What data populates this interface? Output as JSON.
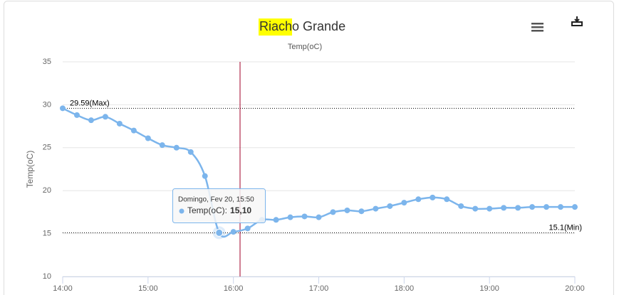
{
  "chart_data": {
    "type": "line",
    "title_highlight": "Riach",
    "title_rest": "o Grande",
    "subtitle": "Temp(oC)",
    "y_label": "Temp(oC)",
    "categories": [
      "14:00",
      null,
      null,
      null,
      null,
      null,
      "15:00",
      null,
      null,
      null,
      null,
      null,
      "16:00",
      null,
      null,
      null,
      null,
      null,
      "17:00",
      null,
      null,
      null,
      null,
      null,
      "18:00",
      null,
      null,
      null,
      null,
      null,
      "19:00",
      null,
      null,
      null,
      null,
      null,
      "20:00"
    ],
    "series": [
      {
        "name": "Temp(oC)",
        "color": "#7cb5ec",
        "values": [
          29.59,
          28.8,
          28.2,
          28.6,
          27.8,
          27.0,
          26.1,
          25.3,
          25.0,
          24.5,
          21.7,
          15.1,
          15.2,
          15.6,
          16.6,
          16.6,
          16.9,
          17.0,
          16.9,
          17.5,
          17.7,
          17.6,
          17.9,
          18.2,
          18.6,
          19.0,
          19.2,
          19.0,
          18.2,
          17.9,
          17.9,
          18.0,
          18.0,
          18.1,
          18.1,
          18.1,
          18.1
        ]
      }
    ],
    "ylim": [
      10,
      35
    ],
    "yticks": [
      10,
      15,
      20,
      25,
      30,
      35
    ],
    "grid": true,
    "plot_lines": [
      {
        "value": 29.59,
        "label": "29.59(Max)"
      },
      {
        "value": 15.1,
        "label": "15.1(Min)"
      }
    ],
    "tooltip": {
      "index": 11,
      "header": "Domingo, Fev 20, 15:50",
      "label": "Temp(oC):",
      "value_text": "15,10"
    }
  }
}
